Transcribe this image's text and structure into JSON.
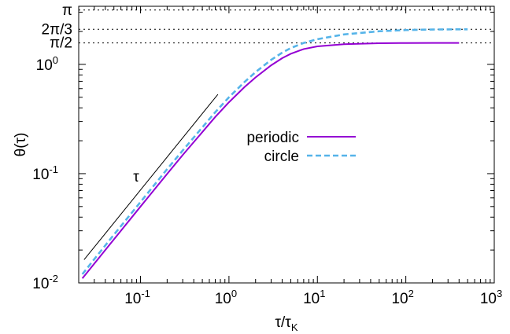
{
  "chart_data": {
    "type": "line",
    "title": "",
    "xlabel": "τ/τ",
    "xlabel_sub": "K",
    "ylabel": "θ(τ)",
    "xscale": "log",
    "yscale": "log",
    "xlim": [
      0.02,
      1000
    ],
    "ylim": [
      0.01,
      3.4
    ],
    "grid": false,
    "legend_position": "center-right",
    "x_ticks": [
      {
        "value": 0.1,
        "base": "10",
        "exp": "-1"
      },
      {
        "value": 1,
        "base": "10",
        "exp": "0"
      },
      {
        "value": 10,
        "base": "10",
        "exp": "1"
      },
      {
        "value": 100,
        "base": "10",
        "exp": "2"
      },
      {
        "value": 1000,
        "base": "10",
        "exp": "3"
      }
    ],
    "y_ticks": [
      {
        "value": 0.01,
        "base": "10",
        "exp": "-2"
      },
      {
        "value": 0.1,
        "base": "10",
        "exp": "-1"
      },
      {
        "value": 1,
        "base": "10",
        "exp": "0"
      }
    ],
    "reference_lines": [
      {
        "value": 3.14159,
        "label": "π"
      },
      {
        "value": 2.0944,
        "label": "2π/3"
      },
      {
        "value": 1.5708,
        "label": "π/2"
      }
    ],
    "guide_line": {
      "label": "τ",
      "x": [
        0.023,
        0.75
      ],
      "y": [
        0.0163,
        0.532
      ]
    },
    "series": [
      {
        "name": "periodic",
        "color": "#9400d3",
        "dash": "solid",
        "x": [
          0.022,
          0.03,
          0.05,
          0.1,
          0.2,
          0.3,
          0.5,
          0.7,
          1,
          1.5,
          2,
          3,
          4,
          5,
          7,
          10,
          20,
          50,
          100,
          200,
          400
        ],
        "y": [
          0.011,
          0.015,
          0.025,
          0.05,
          0.0995,
          0.148,
          0.24,
          0.33,
          0.45,
          0.62,
          0.76,
          0.98,
          1.14,
          1.25,
          1.38,
          1.46,
          1.53,
          1.56,
          1.568,
          1.571,
          1.571
        ]
      },
      {
        "name": "circle",
        "color": "#56b4e9",
        "dash": "dashed",
        "x": [
          0.022,
          0.03,
          0.05,
          0.1,
          0.2,
          0.3,
          0.5,
          0.7,
          1,
          1.5,
          2,
          3,
          4,
          5,
          7,
          10,
          20,
          50,
          100,
          200,
          500
        ],
        "y": [
          0.012,
          0.0165,
          0.0276,
          0.055,
          0.11,
          0.163,
          0.265,
          0.365,
          0.5,
          0.69,
          0.85,
          1.1,
          1.28,
          1.41,
          1.57,
          1.7,
          1.88,
          2.01,
          2.06,
          2.085,
          2.094
        ]
      }
    ]
  }
}
